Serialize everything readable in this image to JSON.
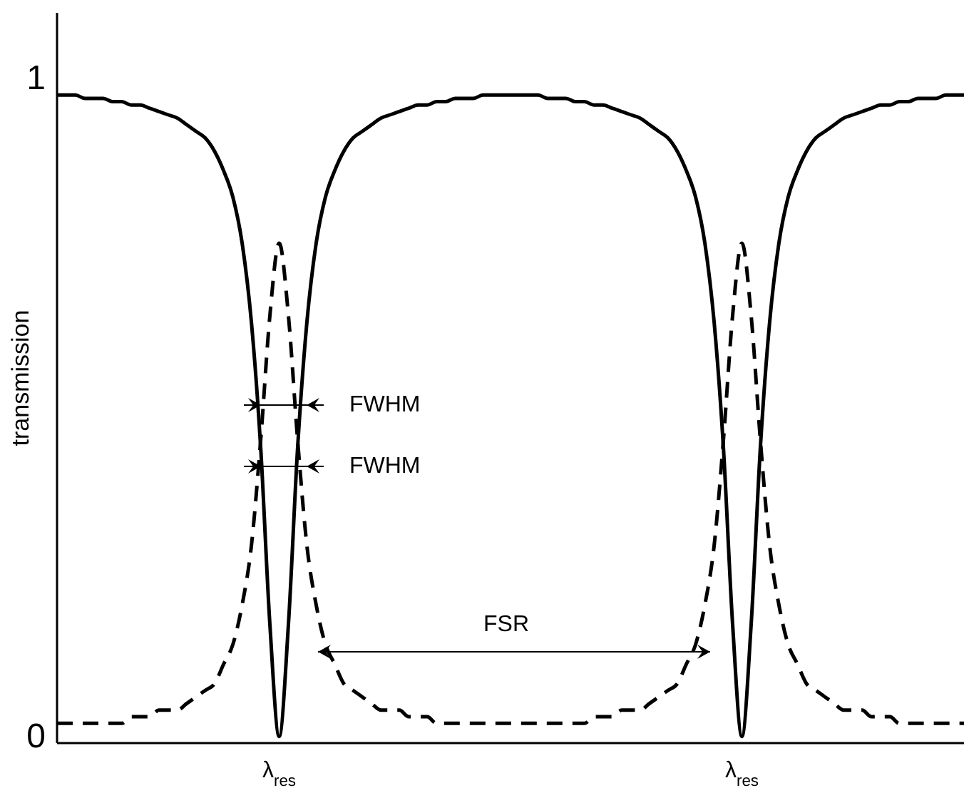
{
  "chart_data": {
    "type": "line",
    "ylabel": "transmission",
    "ylim": [
      -0.01,
      1.1
    ],
    "yticks": [
      0,
      1
    ],
    "grid": false,
    "marker": "none",
    "categories": [
      null,
      null,
      null,
      null,
      null,
      null,
      null,
      null,
      null,
      null,
      null,
      null,
      null,
      null,
      null,
      null,
      null,
      null,
      null,
      null,
      null,
      null,
      null,
      null,
      "λ$_{res}$",
      null,
      null,
      null,
      null,
      null,
      null,
      null,
      null,
      null,
      null,
      null,
      null,
      null,
      null,
      null,
      null,
      null,
      null,
      null,
      null,
      null,
      null,
      null,
      null,
      null,
      null,
      null,
      null,
      null,
      null,
      null,
      null,
      null,
      null,
      null,
      null,
      null,
      null,
      null,
      null,
      null,
      null,
      null,
      null,
      null,
      null,
      null,
      null,
      null,
      "λ$_{res}$",
      null,
      null,
      null,
      null,
      null,
      null,
      null,
      null,
      null,
      null,
      null,
      null,
      null,
      null,
      null,
      null,
      null,
      null,
      null,
      null,
      null,
      null,
      null,
      null
    ],
    "series": [
      {
        "color": "#000000",
        "line_style": "solid",
        "values": [
          0.975,
          0.975,
          0.975,
          0.97,
          0.97,
          0.97,
          0.965,
          0.965,
          0.96,
          0.96,
          0.955,
          0.95,
          0.945,
          0.94,
          0.93,
          0.92,
          0.91,
          0.89,
          0.86,
          0.82,
          0.75,
          0.63,
          0.44,
          0.17,
          0,
          0.17,
          0.44,
          0.63,
          0.75,
          0.82,
          0.86,
          0.89,
          0.91,
          0.92,
          0.93,
          0.94,
          0.945,
          0.95,
          0.955,
          0.96,
          0.96,
          0.965,
          0.965,
          0.97,
          0.97,
          0.97,
          0.975,
          0.975,
          0.975,
          0.975,
          0.975,
          0.975,
          0.975,
          0.97,
          0.97,
          0.97,
          0.965,
          0.965,
          0.96,
          0.96,
          0.955,
          0.95,
          0.945,
          0.94,
          0.93,
          0.92,
          0.91,
          0.89,
          0.86,
          0.82,
          0.75,
          0.63,
          0.44,
          0.17,
          0,
          0.17,
          0.44,
          0.63,
          0.75,
          0.82,
          0.86,
          0.89,
          0.91,
          0.92,
          0.93,
          0.94,
          0.945,
          0.95,
          0.955,
          0.96,
          0.96,
          0.965,
          0.965,
          0.97,
          0.97,
          0.97,
          0.975,
          0.975,
          0.975
        ]
      },
      {
        "color": "#000000",
        "line_style": "dashed",
        "values": [
          0.02,
          0.02,
          0.02,
          0.02,
          0.02,
          0.02,
          0.02,
          0.02,
          0.03,
          0.03,
          0.03,
          0.04,
          0.04,
          0.04,
          0.05,
          0.06,
          0.07,
          0.08,
          0.11,
          0.14,
          0.2,
          0.29,
          0.45,
          0.64,
          0.75,
          0.64,
          0.45,
          0.29,
          0.2,
          0.14,
          0.11,
          0.08,
          0.07,
          0.06,
          0.05,
          0.04,
          0.04,
          0.04,
          0.03,
          0.03,
          0.03,
          0.02,
          0.02,
          0.02,
          0.02,
          0.02,
          0.02,
          0.02,
          0.02,
          0.02,
          0.02,
          0.02,
          0.02,
          0.02,
          0.02,
          0.02,
          0.02,
          0.02,
          0.03,
          0.03,
          0.03,
          0.04,
          0.04,
          0.04,
          0.05,
          0.06,
          0.07,
          0.08,
          0.11,
          0.14,
          0.2,
          0.29,
          0.45,
          0.64,
          0.75,
          0.64,
          0.45,
          0.29,
          0.2,
          0.14,
          0.11,
          0.08,
          0.07,
          0.06,
          0.05,
          0.04,
          0.04,
          0.04,
          0.03,
          0.03,
          0.03,
          0.02,
          0.02,
          0.02,
          0.02,
          0.02,
          0.02,
          0.02,
          0.02
        ]
      }
    ],
    "annotations": [
      "FWHM",
      "FWHM",
      "FSR"
    ]
  }
}
